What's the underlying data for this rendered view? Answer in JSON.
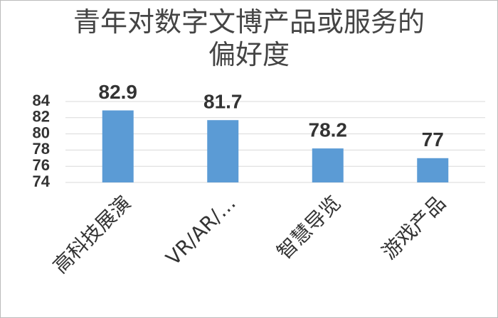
{
  "chart_data": {
    "type": "bar",
    "title": "青年对数字文博产品或服务的偏好度",
    "categories": [
      "高科技展演",
      "VR/AR/…",
      "智慧导览",
      "游戏产品"
    ],
    "values": [
      82.9,
      81.7,
      78.2,
      77
    ],
    "color": "#5b9bd5",
    "ylim": [
      74,
      84
    ],
    "yticks": [
      74,
      76,
      78,
      80,
      82,
      84
    ],
    "grid": true
  }
}
